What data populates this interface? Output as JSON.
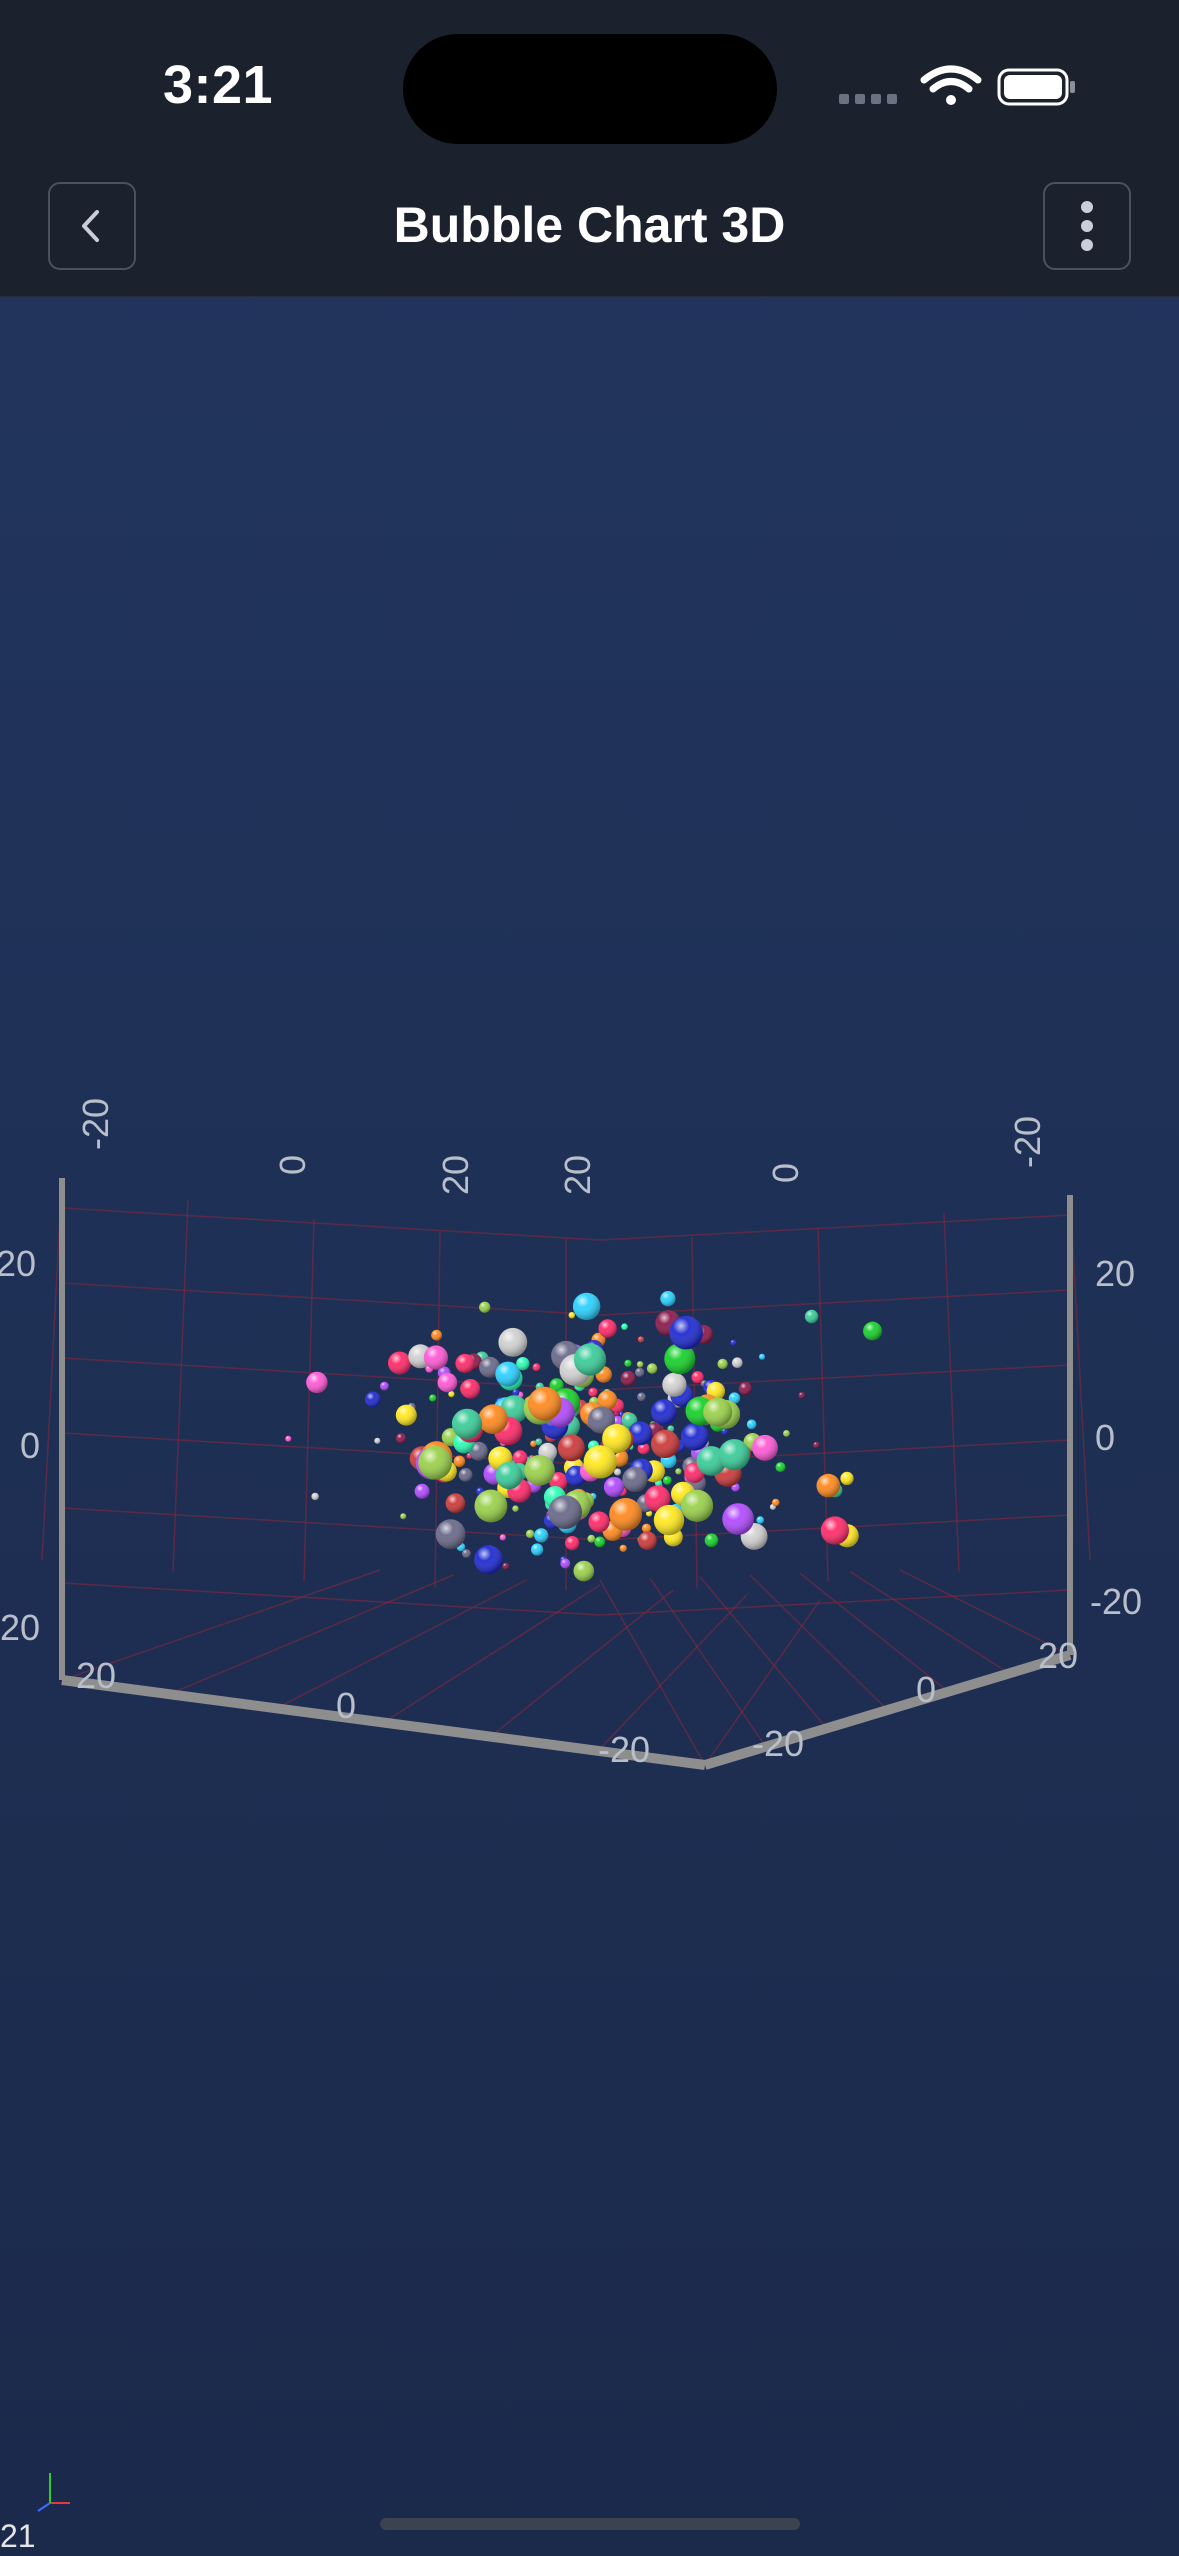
{
  "status_bar": {
    "time": "3:21"
  },
  "app_bar": {
    "title": "Bubble Chart 3D",
    "back_icon": "chevron-left-icon",
    "menu_icon": "more-vertical-icon"
  },
  "chart_data": {
    "type": "scatter",
    "title": "",
    "x_ticks": [
      "20",
      "0",
      "-20"
    ],
    "y_ticks": [
      "20",
      "0",
      "-20"
    ],
    "z_ticks": [
      "20",
      "0",
      "-20"
    ],
    "top_x_ticks": [
      "-20",
      "0",
      "20"
    ],
    "top_z_ticks": [
      "20",
      "0",
      "-20"
    ],
    "xlim": [
      -30,
      30
    ],
    "ylim": [
      -30,
      30
    ],
    "zlim": [
      -30,
      30
    ],
    "grid": true,
    "colors": [
      "#ff2b6a",
      "#2bd1ff",
      "#18d12b",
      "#b24bff",
      "#ffe81f",
      "#ff8a1f",
      "#1f2bd1",
      "#d1d1d1",
      "#2bffb4",
      "#ff5ad6",
      "#8b1a4a",
      "#9ad14b",
      "#6a6a8a",
      "#cc3b3b",
      "#3bcc99"
    ],
    "bubble_count": 320
  },
  "fps": "21"
}
